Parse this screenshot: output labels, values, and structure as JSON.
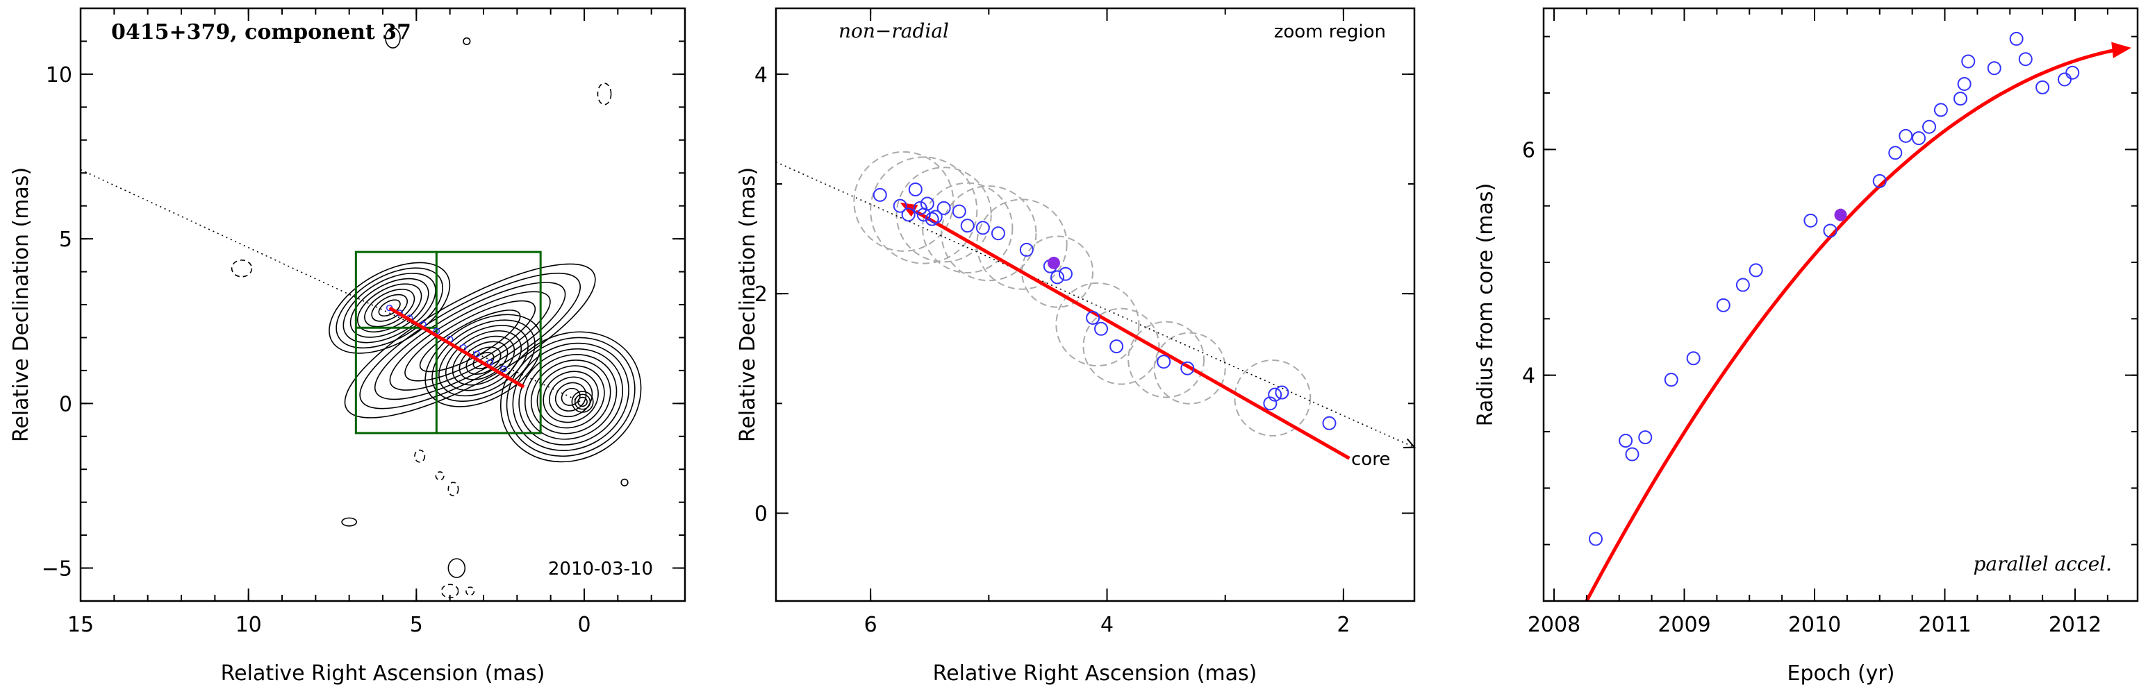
{
  "colors": {
    "frame": "#000000",
    "model": "#ff0000",
    "points": "#3333ff",
    "highlight": "#8a2be2",
    "box": "#006400",
    "circles": "#aaaaaa"
  },
  "chart_data": [
    {
      "type": "contour",
      "title": "0415+379, component 37",
      "xlabel": "Relative Right Ascension (mas)",
      "ylabel": "Relative Declination (mas)",
      "xlim": [
        15,
        -3
      ],
      "ylim": [
        -6,
        12
      ],
      "xticks": [
        "15",
        "10",
        "5",
        "0"
      ],
      "yticks": [
        "−5",
        "0",
        "5",
        "10"
      ],
      "date_label": "2010-03-10",
      "direction_line": {
        "x": [
          15,
          0
        ],
        "y": [
          7.1,
          0
        ]
      },
      "model_track": {
        "x": [
          5.8,
          1.8
        ],
        "y": [
          2.9,
          0.5
        ]
      },
      "zoom_box": {
        "x": [
          6.8,
          1.3
        ],
        "y": [
          -0.9,
          4.6
        ],
        "split_x": 4.4,
        "split_y": 2.3
      },
      "points": {
        "x": [
          5.8,
          5.5,
          5.2,
          4.8,
          4.4,
          4.0,
          3.6,
          3.2,
          2.8,
          2.4
        ],
        "y": [
          2.9,
          2.75,
          2.6,
          2.4,
          2.2,
          1.95,
          1.7,
          1.5,
          1.25,
          1.05
        ]
      }
    },
    {
      "type": "scatter",
      "title": "",
      "xlabel": "Relative Right Ascension (mas)",
      "ylabel": "Relative Declination (mas)",
      "xlim": [
        6.8,
        1.4
      ],
      "ylim": [
        -0.8,
        4.6
      ],
      "xticks": [
        "6",
        "4",
        "2"
      ],
      "yticks": [
        "0",
        "2",
        "4"
      ],
      "labels": {
        "left": "non−radial",
        "right": "zoom region",
        "core": "core"
      },
      "direction_line": {
        "x": [
          6.8,
          1.4
        ],
        "y": [
          3.2,
          0.6
        ]
      },
      "model_track": {
        "x": [
          1.95,
          5.75
        ],
        "y": [
          0.5,
          2.83
        ]
      },
      "points": {
        "x": [
          5.92,
          5.75,
          5.68,
          5.62,
          5.58,
          5.55,
          5.52,
          5.48,
          5.45,
          5.38,
          5.25,
          5.18,
          5.05,
          4.92,
          4.68,
          4.48,
          4.42,
          4.35,
          4.12,
          4.05,
          3.92,
          3.52,
          3.32,
          2.62,
          2.58,
          2.52,
          2.12
        ],
        "y": [
          2.9,
          2.8,
          2.72,
          2.95,
          2.78,
          2.72,
          2.82,
          2.68,
          2.7,
          2.78,
          2.75,
          2.62,
          2.6,
          2.55,
          2.4,
          2.25,
          2.15,
          2.18,
          1.78,
          1.68,
          1.52,
          1.38,
          1.32,
          1.0,
          1.08,
          1.1,
          0.82
        ]
      },
      "highlight_point": {
        "x": 4.45,
        "y": 2.28
      },
      "circles": [
        {
          "x": 5.72,
          "y": 2.84,
          "r": 0.42
        },
        {
          "x": 5.55,
          "y": 2.76,
          "r": 0.45
        },
        {
          "x": 5.38,
          "y": 2.72,
          "r": 0.4
        },
        {
          "x": 5.18,
          "y": 2.6,
          "r": 0.38
        },
        {
          "x": 5.0,
          "y": 2.55,
          "r": 0.4
        },
        {
          "x": 4.72,
          "y": 2.45,
          "r": 0.38
        },
        {
          "x": 4.42,
          "y": 2.2,
          "r": 0.3
        },
        {
          "x": 4.08,
          "y": 1.72,
          "r": 0.35
        },
        {
          "x": 3.88,
          "y": 1.52,
          "r": 0.32
        },
        {
          "x": 3.5,
          "y": 1.4,
          "r": 0.32
        },
        {
          "x": 3.3,
          "y": 1.32,
          "r": 0.3
        },
        {
          "x": 2.6,
          "y": 1.05,
          "r": 0.32
        }
      ]
    },
    {
      "type": "scatter",
      "title": "",
      "xlabel": "Epoch (yr)",
      "ylabel": "Radius from core (mas)",
      "xlim": [
        2007.92,
        2012.48
      ],
      "ylim": [
        2.0,
        7.25
      ],
      "xticks": [
        "2008",
        "2009",
        "2010",
        "2011",
        "2012"
      ],
      "yticks": [
        "4",
        "6"
      ],
      "label": "parallel accel.",
      "points": {
        "x": [
          2008.32,
          2008.55,
          2008.6,
          2008.7,
          2008.9,
          2009.07,
          2009.3,
          2009.45,
          2009.55,
          2009.97,
          2010.12,
          2010.5,
          2010.62,
          2010.7,
          2010.8,
          2010.88,
          2010.97,
          2011.12,
          2011.15,
          2011.18,
          2011.38,
          2011.55,
          2011.62,
          2011.75,
          2011.92,
          2011.98
        ],
        "y": [
          2.55,
          3.42,
          3.3,
          3.45,
          3.96,
          4.15,
          4.62,
          4.8,
          4.93,
          5.37,
          5.28,
          5.72,
          5.97,
          6.12,
          6.1,
          6.2,
          6.35,
          6.45,
          6.58,
          6.78,
          6.72,
          6.98,
          6.8,
          6.55,
          6.62,
          6.68
        ]
      },
      "highlight_point": {
        "x": 2010.2,
        "y": 5.42
      },
      "model_curve": {
        "x0": 2008.25,
        "y0": 2.0,
        "x1": 2012.4,
        "y1": 6.9,
        "peak_x": 2012.8
      }
    }
  ]
}
